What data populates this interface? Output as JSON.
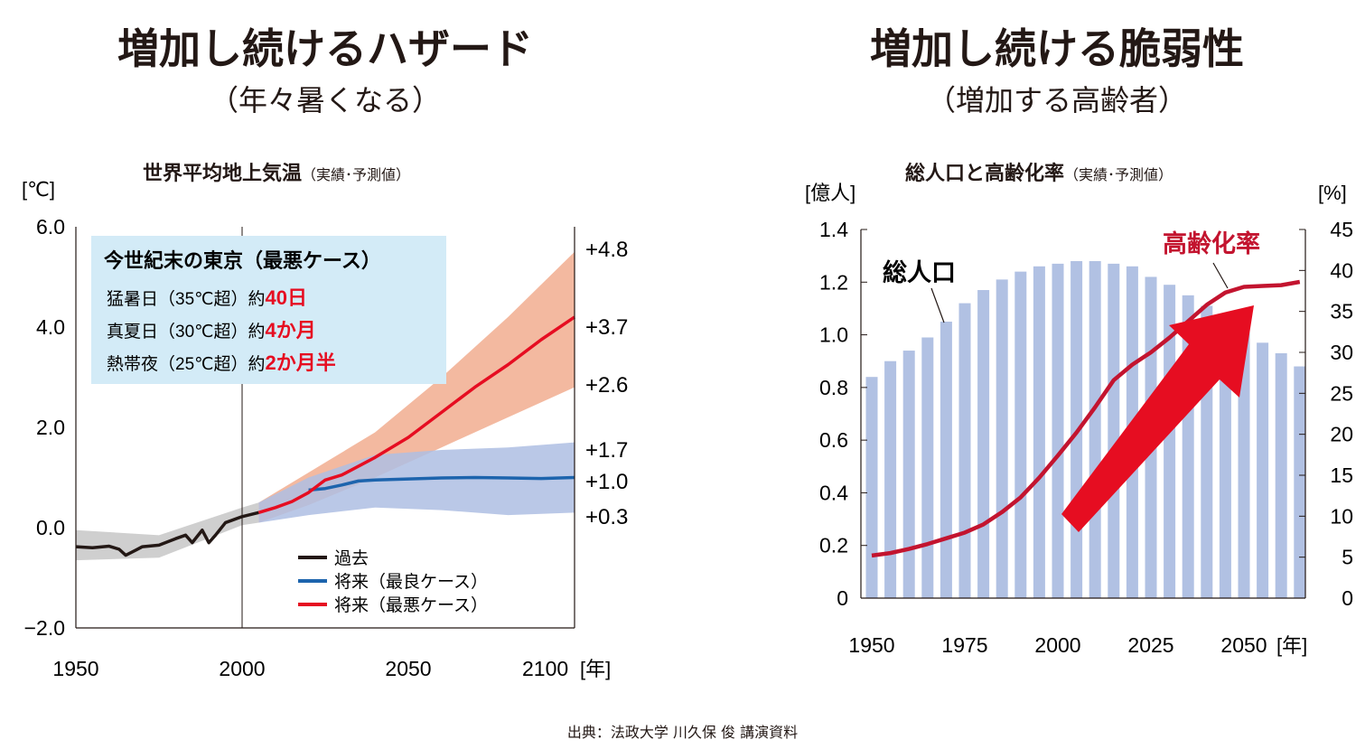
{
  "left": {
    "heading": "増加し続けるハザード",
    "subheading": "（年々暑くなる）",
    "chart_title": "世界平均地上気温",
    "chart_title_note": "（実績･予測値）",
    "unit_label": "[℃]",
    "x_unit_label": "[年]",
    "annotations": [
      "+4.8",
      "+3.7",
      "+2.6",
      "+1.7",
      "+1.0",
      "+0.3"
    ],
    "box": {
      "title": "今世紀末の東京（最悪ケース）",
      "rows": [
        {
          "label": "猛暑日（35℃超）約",
          "value": "40日"
        },
        {
          "label": "真夏日（30℃超）約",
          "value": "4か月"
        },
        {
          "label": "熱帯夜（25℃超）約",
          "value": "2か月半"
        }
      ]
    },
    "legend": [
      {
        "label": "過去",
        "color": "#231815"
      },
      {
        "label": "将来（最良ケース）",
        "color": "#1d64ad"
      },
      {
        "label": "将来（最悪ケース）",
        "color": "#e60d21"
      }
    ]
  },
  "right": {
    "heading": "増加し続ける脆弱性",
    "subheading": "（増加する高齢者）",
    "chart_title": "総人口と高齢化率",
    "chart_title_note": "（実績･予測値）",
    "left_unit": "[億人]",
    "right_unit": "[%]",
    "x_unit_label": "[年]",
    "bar_label": "総人口",
    "line_label": "高齢化率"
  },
  "source": "出典：法政大学 川久保 俊 講演資料",
  "colors": {
    "past": "#231815",
    "best": "#1d64ad",
    "worst": "#e60d21",
    "worst_band": "#f3b9a0",
    "best_band": "#aebee3",
    "past_band": "#cfcfcf",
    "overlap_band": "#a58a98",
    "box_bg": "#d3ebf7",
    "bar": "#b1c1e3",
    "aging_line": "#c3142f",
    "arrow": "#e60d21"
  },
  "chart_data": [
    {
      "type": "line",
      "title": "世界平均地上気温",
      "ylabel": "[℃]",
      "xlabel": "[年]",
      "xlim": [
        1950,
        2100
      ],
      "ylim": [
        -2.0,
        6.0
      ],
      "x_ticks": [
        1950,
        2000,
        2050,
        2100
      ],
      "y_ticks": [
        -2.0,
        0.0,
        2.0,
        4.0,
        6.0
      ],
      "y_tick_labels": [
        "−2.0",
        "0.0",
        "2.0",
        "4.0",
        "6.0"
      ],
      "series": [
        {
          "name": "過去",
          "x": [
            1950,
            1955,
            1960,
            1963,
            1965,
            1968,
            1970,
            1975,
            1980,
            1983,
            1985,
            1988,
            1990,
            1992,
            1995,
            2000,
            2005
          ],
          "y": [
            -0.38,
            -0.4,
            -0.37,
            -0.43,
            -0.55,
            -0.45,
            -0.38,
            -0.35,
            -0.22,
            -0.15,
            -0.3,
            -0.05,
            -0.3,
            -0.15,
            0.1,
            0.22,
            0.3
          ]
        },
        {
          "name": "将来（最良ケース）",
          "x": [
            2020,
            2025,
            2030,
            2035,
            2040,
            2050,
            2060,
            2070,
            2080,
            2090,
            2100
          ],
          "y": [
            0.75,
            0.78,
            0.85,
            0.93,
            0.95,
            0.97,
            0.99,
            1.0,
            0.99,
            0.98,
            1.0
          ]
        },
        {
          "name": "将来（最悪ケース）",
          "x": [
            2005,
            2010,
            2015,
            2020,
            2025,
            2030,
            2040,
            2050,
            2060,
            2070,
            2080,
            2090,
            2100
          ],
          "y": [
            0.3,
            0.4,
            0.52,
            0.7,
            0.95,
            1.05,
            1.4,
            1.8,
            2.3,
            2.8,
            3.25,
            3.75,
            4.2
          ]
        }
      ],
      "bands": [
        {
          "series": "過去",
          "x": [
            1950,
            1975,
            2000,
            2005
          ],
          "low": [
            -0.65,
            -0.6,
            0.05,
            0.1
          ],
          "high": [
            -0.05,
            -0.15,
            0.4,
            0.5
          ]
        },
        {
          "series": "将来（最良ケース）",
          "x": [
            2005,
            2020,
            2040,
            2060,
            2080,
            2100
          ],
          "low": [
            0.1,
            0.25,
            0.4,
            0.35,
            0.25,
            0.3
          ],
          "high": [
            0.5,
            1.0,
            1.45,
            1.55,
            1.6,
            1.7
          ]
        },
        {
          "series": "将来（最悪ケース）",
          "x": [
            2005,
            2020,
            2040,
            2060,
            2080,
            2100
          ],
          "low": [
            0.1,
            0.45,
            1.0,
            1.6,
            2.2,
            2.8
          ],
          "high": [
            0.5,
            1.1,
            1.9,
            3.0,
            4.2,
            5.5
          ]
        }
      ]
    },
    {
      "type": "bar",
      "title": "総人口と高齢化率",
      "xlabel": "[年]",
      "x_ticks": [
        1950,
        1975,
        2000,
        2025,
        2050
      ],
      "categories": [
        1950,
        1955,
        1960,
        1965,
        1970,
        1975,
        1980,
        1985,
        1990,
        1995,
        2000,
        2005,
        2010,
        2015,
        2020,
        2025,
        2030,
        2035,
        2040,
        2045,
        2050,
        2055,
        2060,
        2065
      ],
      "left_axis": {
        "label": "[億人]",
        "ylim": [
          0,
          1.4
        ],
        "ticks": [
          0,
          0.2,
          0.4,
          0.6,
          0.8,
          1.0,
          1.2,
          1.4
        ],
        "tick_labels": [
          "0",
          "0.2",
          "0.4",
          "0.6",
          "0.8",
          "1.0",
          "1.2",
          "1.4"
        ]
      },
      "right_axis": {
        "label": "[%]",
        "ylim": [
          0,
          45
        ],
        "ticks": [
          0,
          5,
          10,
          15,
          20,
          25,
          30,
          35,
          40,
          45
        ]
      },
      "series": [
        {
          "name": "総人口",
          "axis": "left",
          "values": [
            0.84,
            0.9,
            0.94,
            0.99,
            1.05,
            1.12,
            1.17,
            1.21,
            1.24,
            1.26,
            1.27,
            1.28,
            1.28,
            1.27,
            1.26,
            1.22,
            1.19,
            1.15,
            1.11,
            1.06,
            1.02,
            0.97,
            0.93,
            0.88
          ]
        },
        {
          "name": "高齢化率",
          "axis": "right",
          "x": [
            1950,
            1955,
            1960,
            1965,
            1970,
            1975,
            1980,
            1985,
            1990,
            1995,
            2000,
            2005,
            2010,
            2015,
            2020,
            2025,
            2030,
            2035,
            2040,
            2045,
            2050,
            2055,
            2060,
            2065
          ],
          "values": [
            5.2,
            5.5,
            6.0,
            6.6,
            7.3,
            8.0,
            9.0,
            10.5,
            12.3,
            14.7,
            17.4,
            20.2,
            23.3,
            26.6,
            28.5,
            30.0,
            31.8,
            33.8,
            35.8,
            37.3,
            38.0,
            38.1,
            38.2,
            38.6
          ]
        }
      ]
    }
  ]
}
